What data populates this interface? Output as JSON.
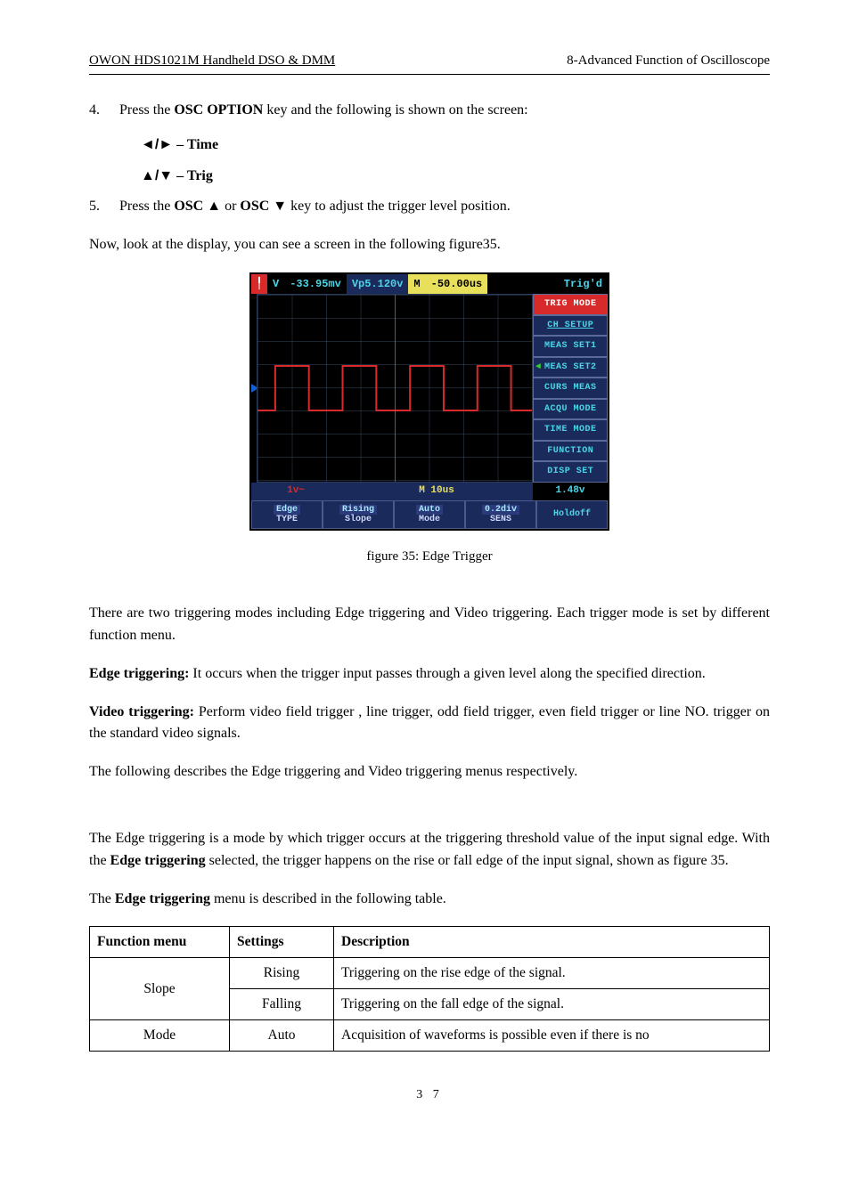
{
  "header": {
    "left": "OWON    HDS1021M Handheld DSO & DMM",
    "right": "8-Advanced Function of Oscilloscope"
  },
  "step4": {
    "num": "4.",
    "text_before": "Press the ",
    "bold1": "OSC OPTION",
    "text_after": " key and the following is shown on the screen:",
    "line1_sym": "◄/►",
    "line1_label": " – Time",
    "line2_sym": "▲/▼",
    "line2_label": " – Trig"
  },
  "step5": {
    "num": "5.",
    "t1": "Press the ",
    "b1": "OSC  ▲",
    "t2": " or ",
    "b2": "OSC  ▼",
    "t3": " key to adjust the trigger level position."
  },
  "para_now": "Now, look at the display, you can see a screen in the following figure35.",
  "scope": {
    "top": {
      "v_label": "V",
      "v_val": "-33.95mv",
      "vp_label": "Vp5.120v",
      "m_label": "M",
      "m_val": "-50.00us",
      "trig": "Trig'd"
    },
    "colors": {
      "red": "#d82a2a",
      "cyan": "#4ad6e8",
      "yellow": "#e8e05a",
      "black": "#000000",
      "btn_bg": "#1a2a5a",
      "btn_hl": "#2aa6c4",
      "blue_bg": "#0a1a4a",
      "bottom_text": "#d0d8ff"
    },
    "side": [
      {
        "label": "TRIG MODE",
        "hl": true
      },
      {
        "label": "CH SETUP",
        "ul": true
      },
      {
        "label": "MEAS SET1"
      },
      {
        "label": "MEAS SET2",
        "marker": "green"
      },
      {
        "label": "CURS MEAS"
      },
      {
        "label": "ACQU MODE"
      },
      {
        "label": "TIME MODE"
      },
      {
        "label": "FUNCTION"
      },
      {
        "label": "DISP SET"
      }
    ],
    "timebase": {
      "left": "1v~",
      "mid": "M 10us",
      "right": "1.48v"
    },
    "bottom": [
      {
        "l1": "Edge",
        "l2": "TYPE",
        "hl1": true
      },
      {
        "l1": "Rising",
        "l2": "Slope",
        "hl1": true
      },
      {
        "l1": "Auto",
        "l2": "Mode",
        "hl1": true
      },
      {
        "l1": "0.2div",
        "l2": "SENS",
        "hl1": true
      },
      {
        "l1": "Holdoff",
        "l2": "",
        "hl1": false
      }
    ]
  },
  "fig_caption": "figure 35: Edge Trigger",
  "para_modes": "There are two triggering modes including Edge triggering and Video triggering. Each trigger mode is set by different function menu.",
  "para_edge_b": "Edge triggering:",
  "para_edge_t": " It occurs when the trigger input passes through a given level along the specified direction.",
  "para_video_b": "Video triggering:",
  "para_video_t": " Perform video field trigger , line trigger, odd field trigger, even field trigger or line NO. trigger on the standard video signals.",
  "para_following": "The following describes the Edge triggering and Video triggering menus respectively.",
  "para_edge_desc_1": "The Edge triggering is a mode by which trigger occurs at the triggering threshold value of the input signal edge. With the ",
  "para_edge_desc_b": "Edge triggering",
  "para_edge_desc_2": " selected, the trigger happens on the rise or fall edge of the input signal, shown as figure 35.",
  "para_table_intro_1": "The ",
  "para_table_intro_b": "Edge triggering",
  "para_table_intro_2": " menu is described in the following table.",
  "table": {
    "headers": [
      "Function menu",
      "Settings",
      "Description"
    ],
    "rows": [
      {
        "func": "Slope",
        "set": "Rising",
        "desc": "Triggering on the rise edge of the signal."
      },
      {
        "func": "",
        "set": "Falling",
        "desc": "Triggering on the fall edge of the signal."
      },
      {
        "func": "Mode",
        "set": "Auto",
        "desc": "Acquisition of waveforms is possible even if there is no"
      }
    ]
  },
  "page_num": "3 7"
}
